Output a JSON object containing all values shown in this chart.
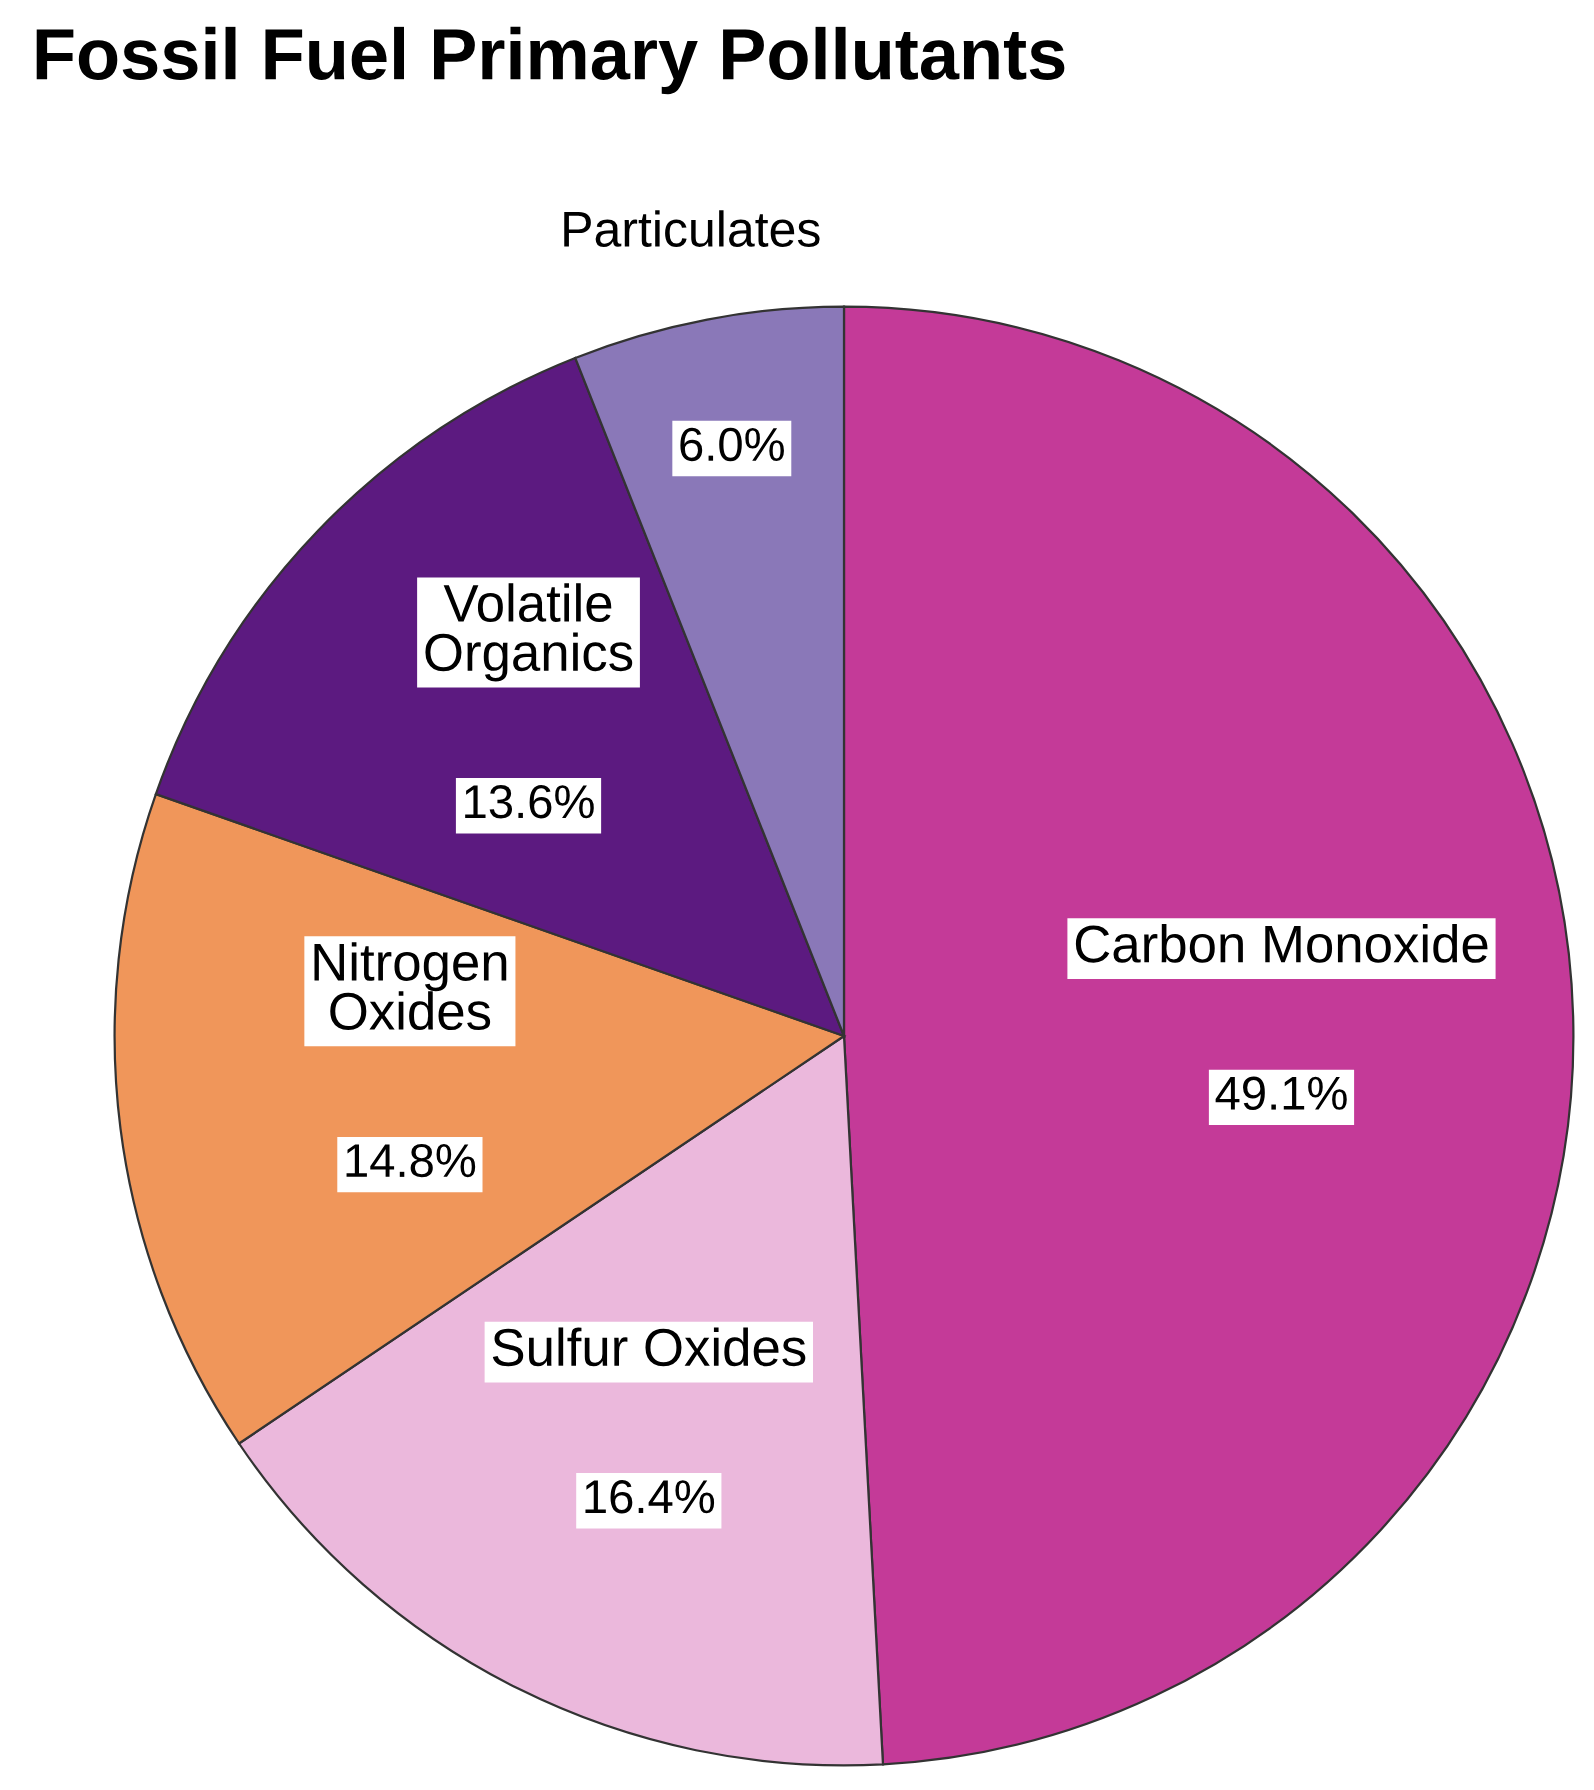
{
  "chart_data": {
    "type": "pie",
    "title": "Fossil Fuel Primary Pollutants",
    "categories": [
      "Carbon Monoxide",
      "Sulfur Oxides",
      "Nitrogen Oxides",
      "Volatile Organics",
      "Particulates"
    ],
    "values": [
      49.1,
      16.4,
      14.8,
      13.6,
      6.0
    ],
    "colors": [
      "#c43a98",
      "#ebb8dc",
      "#f0965a",
      "#5c1a80",
      "#8a78b8"
    ],
    "value_labels": [
      "49.1%",
      "16.4%",
      "14.8%",
      "13.6%",
      "6.0%"
    ],
    "legend": false
  }
}
